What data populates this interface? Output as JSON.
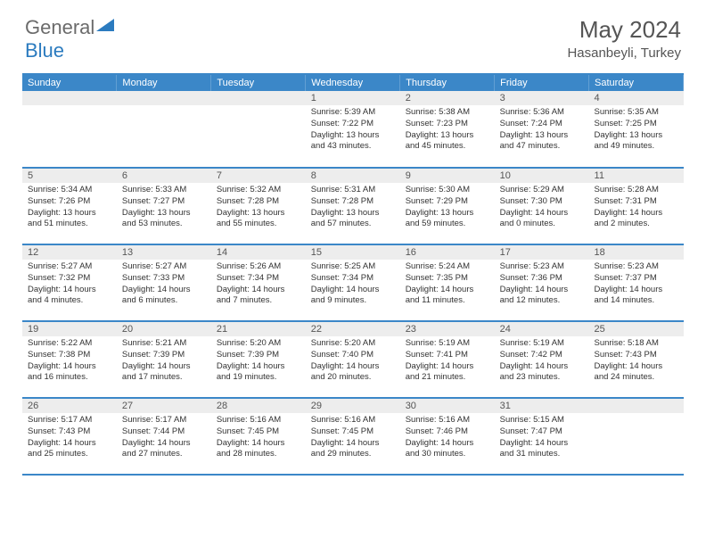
{
  "logo": {
    "general": "General",
    "blue": "Blue"
  },
  "title": "May 2024",
  "location": "Hasanbeyli, Turkey",
  "colors": {
    "accent": "#3b87c8",
    "daynum_bg": "#ededed",
    "text": "#333333",
    "title_text": "#555555"
  },
  "day_headers": [
    "Sunday",
    "Monday",
    "Tuesday",
    "Wednesday",
    "Thursday",
    "Friday",
    "Saturday"
  ],
  "weeks": [
    [
      null,
      null,
      null,
      {
        "n": "1",
        "sr": "5:39 AM",
        "ss": "7:22 PM",
        "dl": "13 hours and 43 minutes."
      },
      {
        "n": "2",
        "sr": "5:38 AM",
        "ss": "7:23 PM",
        "dl": "13 hours and 45 minutes."
      },
      {
        "n": "3",
        "sr": "5:36 AM",
        "ss": "7:24 PM",
        "dl": "13 hours and 47 minutes."
      },
      {
        "n": "4",
        "sr": "5:35 AM",
        "ss": "7:25 PM",
        "dl": "13 hours and 49 minutes."
      }
    ],
    [
      {
        "n": "5",
        "sr": "5:34 AM",
        "ss": "7:26 PM",
        "dl": "13 hours and 51 minutes."
      },
      {
        "n": "6",
        "sr": "5:33 AM",
        "ss": "7:27 PM",
        "dl": "13 hours and 53 minutes."
      },
      {
        "n": "7",
        "sr": "5:32 AM",
        "ss": "7:28 PM",
        "dl": "13 hours and 55 minutes."
      },
      {
        "n": "8",
        "sr": "5:31 AM",
        "ss": "7:28 PM",
        "dl": "13 hours and 57 minutes."
      },
      {
        "n": "9",
        "sr": "5:30 AM",
        "ss": "7:29 PM",
        "dl": "13 hours and 59 minutes."
      },
      {
        "n": "10",
        "sr": "5:29 AM",
        "ss": "7:30 PM",
        "dl": "14 hours and 0 minutes."
      },
      {
        "n": "11",
        "sr": "5:28 AM",
        "ss": "7:31 PM",
        "dl": "14 hours and 2 minutes."
      }
    ],
    [
      {
        "n": "12",
        "sr": "5:27 AM",
        "ss": "7:32 PM",
        "dl": "14 hours and 4 minutes."
      },
      {
        "n": "13",
        "sr": "5:27 AM",
        "ss": "7:33 PM",
        "dl": "14 hours and 6 minutes."
      },
      {
        "n": "14",
        "sr": "5:26 AM",
        "ss": "7:34 PM",
        "dl": "14 hours and 7 minutes."
      },
      {
        "n": "15",
        "sr": "5:25 AM",
        "ss": "7:34 PM",
        "dl": "14 hours and 9 minutes."
      },
      {
        "n": "16",
        "sr": "5:24 AM",
        "ss": "7:35 PM",
        "dl": "14 hours and 11 minutes."
      },
      {
        "n": "17",
        "sr": "5:23 AM",
        "ss": "7:36 PM",
        "dl": "14 hours and 12 minutes."
      },
      {
        "n": "18",
        "sr": "5:23 AM",
        "ss": "7:37 PM",
        "dl": "14 hours and 14 minutes."
      }
    ],
    [
      {
        "n": "19",
        "sr": "5:22 AM",
        "ss": "7:38 PM",
        "dl": "14 hours and 16 minutes."
      },
      {
        "n": "20",
        "sr": "5:21 AM",
        "ss": "7:39 PM",
        "dl": "14 hours and 17 minutes."
      },
      {
        "n": "21",
        "sr": "5:20 AM",
        "ss": "7:39 PM",
        "dl": "14 hours and 19 minutes."
      },
      {
        "n": "22",
        "sr": "5:20 AM",
        "ss": "7:40 PM",
        "dl": "14 hours and 20 minutes."
      },
      {
        "n": "23",
        "sr": "5:19 AM",
        "ss": "7:41 PM",
        "dl": "14 hours and 21 minutes."
      },
      {
        "n": "24",
        "sr": "5:19 AM",
        "ss": "7:42 PM",
        "dl": "14 hours and 23 minutes."
      },
      {
        "n": "25",
        "sr": "5:18 AM",
        "ss": "7:43 PM",
        "dl": "14 hours and 24 minutes."
      }
    ],
    [
      {
        "n": "26",
        "sr": "5:17 AM",
        "ss": "7:43 PM",
        "dl": "14 hours and 25 minutes."
      },
      {
        "n": "27",
        "sr": "5:17 AM",
        "ss": "7:44 PM",
        "dl": "14 hours and 27 minutes."
      },
      {
        "n": "28",
        "sr": "5:16 AM",
        "ss": "7:45 PM",
        "dl": "14 hours and 28 minutes."
      },
      {
        "n": "29",
        "sr": "5:16 AM",
        "ss": "7:45 PM",
        "dl": "14 hours and 29 minutes."
      },
      {
        "n": "30",
        "sr": "5:16 AM",
        "ss": "7:46 PM",
        "dl": "14 hours and 30 minutes."
      },
      {
        "n": "31",
        "sr": "5:15 AM",
        "ss": "7:47 PM",
        "dl": "14 hours and 31 minutes."
      },
      null
    ]
  ],
  "labels": {
    "sunrise": "Sunrise: ",
    "sunset": "Sunset: ",
    "daylight": "Daylight: "
  }
}
